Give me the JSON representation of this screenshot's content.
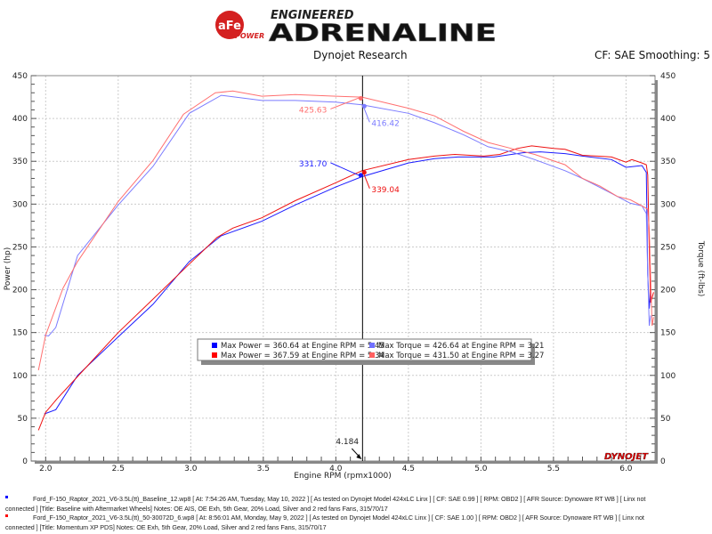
{
  "header": {
    "brand_small": "ENGINEERED",
    "brand_large": "ADRENALINE",
    "logo_text": "aFe",
    "logo_sub": "POWER",
    "company": "Dynojet Research",
    "settings": "CF: SAE Smoothing: 5"
  },
  "chart_data": {
    "type": "line",
    "xlabel": "Engine RPM (rpmx1000)",
    "ylabel": "Power (hp)",
    "y2label": "Torque (ft-lbs)",
    "xlim": [
      1.9,
      6.2
    ],
    "ylim": [
      0,
      450
    ],
    "y2lim": [
      0,
      450
    ],
    "xticks": [
      "2.0",
      "2.5",
      "3.0",
      "3.5",
      "4.0",
      "4.5",
      "5.0",
      "5.5",
      "6.0"
    ],
    "yticks": [
      "0",
      "50",
      "100",
      "150",
      "200",
      "250",
      "300",
      "350",
      "400",
      "450"
    ],
    "grid": true,
    "cursor": {
      "x": 4.184,
      "label": "4.184"
    },
    "series": [
      {
        "key": "power1",
        "color": "#1a1aff",
        "x": [
          1.99,
          2.07,
          2.22,
          2.5,
          2.74,
          2.99,
          3.21,
          3.49,
          3.72,
          4.0,
          4.18,
          4.5,
          4.68,
          4.84,
          5.09,
          5.29,
          5.41,
          5.58,
          5.7,
          5.9,
          6.0,
          6.11,
          6.14,
          6.15,
          6.16,
          6.17
        ],
        "y": [
          55,
          60,
          100,
          145,
          183,
          233,
          263,
          280,
          299,
          320,
          332,
          348,
          353,
          355,
          355,
          360,
          361,
          359,
          356,
          352,
          343,
          345,
          337,
          218,
          178,
          199
        ]
      },
      {
        "key": "power2",
        "color": "#ee1111",
        "x": [
          1.95,
          2.0,
          2.08,
          2.2,
          2.5,
          2.74,
          2.99,
          3.18,
          3.29,
          3.49,
          3.72,
          4.0,
          4.18,
          4.5,
          4.68,
          4.82,
          5.02,
          5.13,
          5.25,
          5.35,
          5.5,
          5.58,
          5.7,
          5.8,
          5.9,
          6.0,
          6.04,
          6.11,
          6.14,
          6.15,
          6.16,
          6.17,
          6.19
        ],
        "y": [
          36,
          57,
          73,
          95,
          150,
          189,
          230,
          261,
          272,
          284,
          304,
          325,
          339,
          352,
          356,
          358,
          356,
          358,
          365,
          368,
          365,
          364,
          357,
          356,
          355,
          349,
          352,
          348,
          346,
          334,
          248,
          185,
          197
        ]
      },
      {
        "key": "torque1",
        "color": "#7b7bff",
        "x": [
          1.99,
          2.02,
          2.07,
          2.22,
          2.5,
          2.74,
          2.99,
          3.21,
          3.49,
          3.72,
          4.0,
          4.18,
          4.5,
          4.68,
          4.88,
          5.05,
          5.21,
          5.37,
          5.58,
          5.7,
          5.86,
          6.03,
          6.11,
          6.14,
          6.15,
          6.16,
          6.17
        ],
        "y": [
          147,
          146,
          156,
          240,
          299,
          344,
          406,
          427,
          421,
          421,
          419,
          416,
          406,
          395,
          381,
          367,
          361,
          352,
          339,
          330,
          316,
          301,
          298,
          289,
          219,
          158,
          170
        ]
      },
      {
        "key": "torque2",
        "color": "#ff7070",
        "x": [
          1.95,
          2.0,
          2.12,
          2.22,
          2.5,
          2.74,
          2.95,
          3.17,
          3.29,
          3.49,
          3.72,
          4.0,
          4.18,
          4.5,
          4.68,
          4.88,
          5.05,
          5.21,
          5.37,
          5.58,
          5.7,
          5.82,
          5.94,
          6.03,
          6.11,
          6.15,
          6.16,
          6.17,
          6.18,
          6.19
        ],
        "y": [
          106,
          147,
          202,
          233,
          303,
          351,
          405,
          430,
          432,
          426,
          428,
          426,
          425,
          412,
          403,
          385,
          372,
          365,
          358,
          346,
          330,
          321,
          309,
          305,
          298,
          294,
          272,
          213,
          158,
          168
        ]
      }
    ],
    "annotations": [
      {
        "label": "425.63",
        "series": "torque2",
        "x": 4.184,
        "y": 425.63,
        "color": "#ff7070"
      },
      {
        "label": "416.42",
        "series": "torque1",
        "x": 4.184,
        "y": 416.42,
        "color": "#7b7bff"
      },
      {
        "label": "331.70",
        "series": "power1",
        "x": 4.184,
        "y": 331.7,
        "color": "#1a1aff"
      },
      {
        "label": "339.04",
        "series": "power2",
        "x": 4.184,
        "y": 339.04,
        "color": "#ee1111"
      }
    ],
    "legend": {
      "placement": "bottom-center",
      "items": [
        {
          "text": "Max Power = 360.64 at Engine RPM = 5.45",
          "color": "#0000ff"
        },
        {
          "text": "Max Power = 367.59 at Engine RPM = 5.34",
          "color": "#ff0000"
        },
        {
          "text": "Max Torque = 426.64 at Engine RPM = 3.21",
          "color": "#7070ff"
        },
        {
          "text": "Max Torque = 431.50 at Engine RPM = 3.27",
          "color": "#ff6060"
        }
      ]
    },
    "watermark": "DYNOJET"
  },
  "footer": {
    "runs": [
      {
        "color": "#0000ff",
        "line1": "Ford_F-150_Raptor_2021_V6-3.5L(tt)_Baseline_12.wp8 [ At: 7:54:26 AM, Tuesday, May 10, 2022 ] [ As tested on Dynojet Model 424xLC Linx ] [ CF: SAE 0.99 ] [ RPM: OBD2 ] [ AFR Source: Dynoware RT WB ] [ Linx not",
        "line2": "connected ] [Title: Baseline with Aftermarket Wheels]  Notes: OE AIS, OE Exh, 5th Gear, 20% Load, Silver and 2 red fans Fans, 315/70/17"
      },
      {
        "color": "#ff0000",
        "line1": "Ford_F-150_Raptor_2021_V6-3.5L(tt)_50-30072D_6.wp8 [ At: 8:56:01 AM, Monday, May 9, 2022 ] [ As tested on Dynojet Model 424xLC Linx ] [ CF: SAE 1.00 ] [ RPM: OBD2 ] [ AFR Source: Dynoware RT WB ] [ Linx not",
        "line2": "connected ] [Title: Momentum XP PDS]  Notes: OE Exh, 5th Gear, 20% Load, Silver and 2 red fans Fans, 315/70/17"
      }
    ]
  }
}
